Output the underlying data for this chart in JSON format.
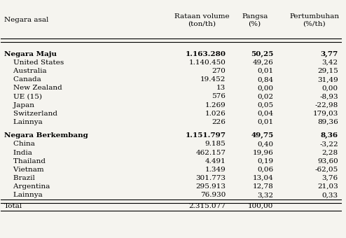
{
  "col_headers": [
    "Negara asal",
    "Rataan volume\n(ton/th)",
    "Pangsa\n(%)",
    "Pertumbuhan\n(%/th)"
  ],
  "rows": [
    {
      "label": "Negara Maju",
      "volume": "1.163.280",
      "pangsa": "50,25",
      "pertumbuhan": "3,77",
      "bold": true,
      "indent": false
    },
    {
      "label": "United States",
      "volume": "1.140.450",
      "pangsa": "49,26",
      "pertumbuhan": "3,42",
      "bold": false,
      "indent": true
    },
    {
      "label": "Australia",
      "volume": "270",
      "pangsa": "0,01",
      "pertumbuhan": "29,15",
      "bold": false,
      "indent": true
    },
    {
      "label": "Canada",
      "volume": "19.452",
      "pangsa": "0,84",
      "pertumbuhan": "31,49",
      "bold": false,
      "indent": true
    },
    {
      "label": "New Zealand",
      "volume": "13",
      "pangsa": "0,00",
      "pertumbuhan": "0,00",
      "bold": false,
      "indent": true
    },
    {
      "label": "UE (15)",
      "volume": "576",
      "pangsa": "0,02",
      "pertumbuhan": "-8,93",
      "bold": false,
      "indent": true
    },
    {
      "label": "Japan",
      "volume": "1.269",
      "pangsa": "0,05",
      "pertumbuhan": "-22,98",
      "bold": false,
      "indent": true
    },
    {
      "label": "Switzerland",
      "volume": "1.026",
      "pangsa": "0,04",
      "pertumbuhan": "179,03",
      "bold": false,
      "indent": true
    },
    {
      "label": "Lainnya",
      "volume": "226",
      "pangsa": "0,01",
      "pertumbuhan": "89,36",
      "bold": false,
      "indent": true
    },
    {
      "label": "Negara Berkembang",
      "volume": "1.151.797",
      "pangsa": "49,75",
      "pertumbuhan": "8,36",
      "bold": true,
      "indent": false
    },
    {
      "label": "China",
      "volume": "9.185",
      "pangsa": "0,40",
      "pertumbuhan": "-3,22",
      "bold": false,
      "indent": true
    },
    {
      "label": "India",
      "volume": "462.157",
      "pangsa": "19,96",
      "pertumbuhan": "2,28",
      "bold": false,
      "indent": true
    },
    {
      "label": "Thailand",
      "volume": "4.491",
      "pangsa": "0,19",
      "pertumbuhan": "93,60",
      "bold": false,
      "indent": true
    },
    {
      "label": "Vietnam",
      "volume": "1.349",
      "pangsa": "0,06",
      "pertumbuhan": "-62,05",
      "bold": false,
      "indent": true
    },
    {
      "label": "Brazil",
      "volume": "301.773",
      "pangsa": "13,04",
      "pertumbuhan": "3,76",
      "bold": false,
      "indent": true
    },
    {
      "label": "Argentina",
      "volume": "295.913",
      "pangsa": "12,78",
      "pertumbuhan": "21,03",
      "bold": false,
      "indent": true
    },
    {
      "label": "Lainnya",
      "volume": "76.930",
      "pangsa": "3,32",
      "pertumbuhan": "0,33",
      "bold": false,
      "indent": true
    },
    {
      "label": "Total",
      "volume": "2.315.077",
      "pangsa": "100,00",
      "pertumbuhan": "",
      "bold": false,
      "indent": false
    }
  ],
  "bg_color": "#f5f4ef",
  "text_color": "#000000",
  "font_size": 7.5,
  "header_font_size": 7.5
}
